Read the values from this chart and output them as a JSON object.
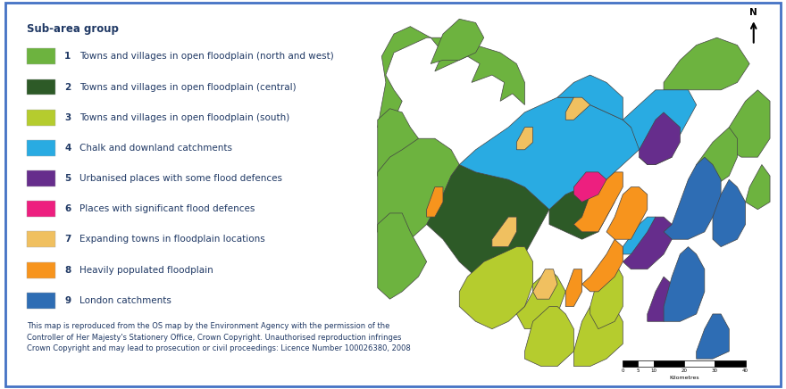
{
  "border_color": "#4472C4",
  "background": "#ffffff",
  "legend_title": "Sub-area group",
  "legend_items": [
    {
      "num": "1",
      "color": "#6db33f",
      "label": "Towns and villages in open floodplain (north and west)"
    },
    {
      "num": "2",
      "color": "#2d5a27",
      "label": "Towns and villages in open floodplain (central)"
    },
    {
      "num": "3",
      "color": "#b5cc2e",
      "label": "Towns and villages in open floodplain (south)"
    },
    {
      "num": "4",
      "color": "#29abe2",
      "label": "Chalk and downland catchments"
    },
    {
      "num": "5",
      "color": "#662d8c",
      "label": "Urbanised places with some flood defences"
    },
    {
      "num": "6",
      "color": "#ed1f7f",
      "label": "Places with significant flood defences"
    },
    {
      "num": "7",
      "color": "#f0c060",
      "label": "Expanding towns in floodplain locations"
    },
    {
      "num": "8",
      "color": "#f7941d",
      "label": "Heavily populated floodplain"
    },
    {
      "num": "9",
      "color": "#2e6db4",
      "label": "London catchments"
    }
  ],
  "text_color": "#1f3864",
  "copyright_text": "This map is reproduced from the OS map by the Environment Agency with the permission of the\nController of Her Majesty's Stationery Office, Crown Copyright. Unauthorised reproduction infringes\nCrown Copyright and may lead to prosecution or civil proceedings: Licence Number 100026380, 2008",
  "fig_width": 8.8,
  "fig_height": 4.36,
  "legend_title_fontsize": 8.5,
  "legend_fontsize": 7.5,
  "copyright_fontsize": 6.0
}
